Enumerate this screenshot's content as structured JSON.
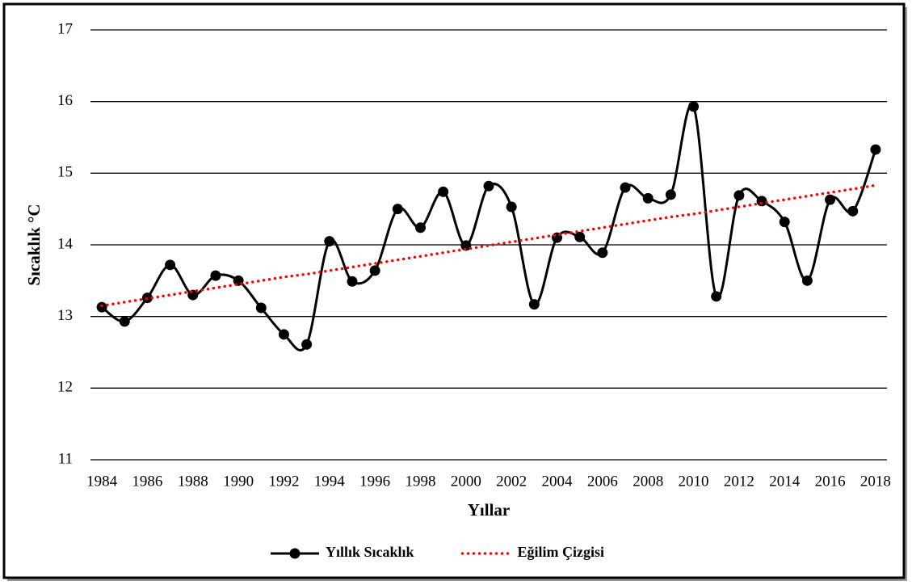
{
  "chart_data": {
    "type": "line",
    "x_label": "Yıllar",
    "y_label": "Sıcaklık °C",
    "x": [
      1984,
      1985,
      1986,
      1987,
      1988,
      1989,
      1990,
      1991,
      1992,
      1993,
      1994,
      1995,
      1996,
      1997,
      1998,
      1999,
      2000,
      2001,
      2002,
      2003,
      2004,
      2005,
      2006,
      2007,
      2008,
      2009,
      2010,
      2011,
      2012,
      2013,
      2014,
      2015,
      2016,
      2017,
      2018
    ],
    "series": [
      {
        "name": "Yıllık Sıcaklık",
        "color": "#000000",
        "smooth": true,
        "markers": true,
        "values": [
          13.13,
          12.93,
          13.26,
          13.72,
          13.3,
          13.57,
          13.5,
          13.12,
          12.75,
          12.61,
          14.05,
          13.49,
          13.64,
          14.5,
          14.24,
          14.74,
          13.99,
          14.82,
          14.53,
          13.17,
          14.1,
          14.11,
          13.89,
          14.8,
          14.65,
          14.7,
          15.93,
          13.28,
          14.69,
          14.61,
          14.32,
          13.5,
          14.63,
          14.47,
          15.33
        ]
      },
      {
        "name": "Eğilim Çizgisi",
        "color": "#ff0000",
        "dotted": true,
        "values": [
          13.15,
          13.2,
          13.25,
          13.3,
          13.35,
          13.4,
          13.45,
          13.5,
          13.55,
          13.59,
          13.64,
          13.69,
          13.74,
          13.79,
          13.84,
          13.89,
          13.94,
          13.99,
          14.04,
          14.09,
          14.14,
          14.19,
          14.24,
          14.29,
          14.34,
          14.39,
          14.43,
          14.48,
          14.53,
          14.58,
          14.63,
          14.68,
          14.73,
          14.78,
          14.83
        ]
      }
    ],
    "xlim": [
      1983.5,
      2018.5
    ],
    "xticks": [
      1984,
      1986,
      1988,
      1990,
      1992,
      1994,
      1996,
      1998,
      2000,
      2002,
      2004,
      2006,
      2008,
      2010,
      2012,
      2014,
      2016,
      2018
    ],
    "ylim": [
      11,
      17
    ],
    "yticks": [
      11,
      12,
      13,
      14,
      15,
      16,
      17
    ],
    "grid": true,
    "legend": "bottom"
  }
}
